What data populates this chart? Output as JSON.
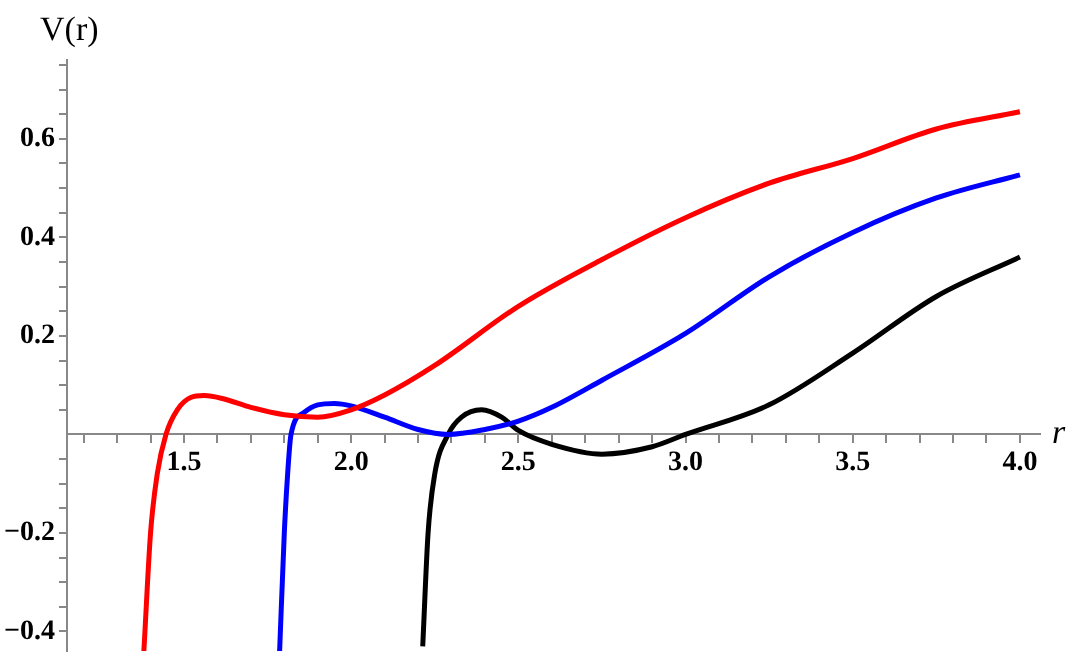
{
  "chart_data": {
    "type": "line",
    "xlabel": "r",
    "ylabel": "V(r)",
    "marker": "none",
    "legend": false,
    "xlim": [
      1.15,
      4.06
    ],
    "ylim": [
      -0.44,
      0.76
    ],
    "xticks": [
      {
        "value": 1.2,
        "label": null
      },
      {
        "value": 1.3,
        "label": null
      },
      {
        "value": 1.4,
        "label": null
      },
      {
        "value": 1.5,
        "label": "1.5"
      },
      {
        "value": 1.6,
        "label": null
      },
      {
        "value": 1.7,
        "label": null
      },
      {
        "value": 1.8,
        "label": null
      },
      {
        "value": 1.9,
        "label": null
      },
      {
        "value": 2,
        "label": "2.0"
      },
      {
        "value": 2.1,
        "label": null
      },
      {
        "value": 2.2,
        "label": null
      },
      {
        "value": 2.3,
        "label": null
      },
      {
        "value": 2.4,
        "label": null
      },
      {
        "value": 2.5,
        "label": "2.5"
      },
      {
        "value": 2.6,
        "label": null
      },
      {
        "value": 2.7,
        "label": null
      },
      {
        "value": 2.8,
        "label": null
      },
      {
        "value": 2.9,
        "label": null
      },
      {
        "value": 3,
        "label": "3.0"
      },
      {
        "value": 3.1,
        "label": null
      },
      {
        "value": 3.2,
        "label": null
      },
      {
        "value": 3.3,
        "label": null
      },
      {
        "value": 3.4,
        "label": null
      },
      {
        "value": 3.5,
        "label": "3.5"
      },
      {
        "value": 3.6,
        "label": null
      },
      {
        "value": 3.7,
        "label": null
      },
      {
        "value": 3.8,
        "label": null
      },
      {
        "value": 3.9,
        "label": null
      },
      {
        "value": 4,
        "label": "4.0"
      }
    ],
    "yticks": [
      {
        "value": -0.4,
        "label": "−0.4"
      },
      {
        "value": -0.35,
        "label": null
      },
      {
        "value": -0.3,
        "label": null
      },
      {
        "value": -0.25,
        "label": null
      },
      {
        "value": -0.2,
        "label": "−0.2"
      },
      {
        "value": -0.15,
        "label": null
      },
      {
        "value": -0.1,
        "label": null
      },
      {
        "value": -0.05,
        "label": null
      },
      {
        "value": 0.05,
        "label": null
      },
      {
        "value": 0.1,
        "label": null
      },
      {
        "value": 0.15,
        "label": null
      },
      {
        "value": 0.2,
        "label": "0.2"
      },
      {
        "value": 0.25,
        "label": null
      },
      {
        "value": 0.3,
        "label": null
      },
      {
        "value": 0.35,
        "label": null
      },
      {
        "value": 0.4,
        "label": "0.4"
      },
      {
        "value": 0.45,
        "label": null
      },
      {
        "value": 0.5,
        "label": null
      },
      {
        "value": 0.55,
        "label": null
      },
      {
        "value": 0.6,
        "label": "0.6"
      },
      {
        "value": 0.65,
        "label": null
      },
      {
        "value": 0.7,
        "label": null
      },
      {
        "value": 0.75,
        "label": null
      }
    ],
    "series": [
      {
        "color": "#ff0000",
        "x": [
          1.38,
          1.4,
          1.42,
          1.446,
          1.48,
          1.52,
          1.56,
          1.62,
          1.7,
          1.8,
          1.9,
          2.0,
          2.1,
          2.25,
          2.5,
          2.75,
          3.0,
          3.25,
          3.5,
          3.75,
          4.0
        ],
        "values": [
          -0.44,
          -0.2,
          -0.08,
          0,
          0.05,
          0.075,
          0.079,
          0.072,
          0.055,
          0.04,
          0.035,
          0.05,
          0.08,
          0.14,
          0.26,
          0.355,
          0.44,
          0.51,
          0.56,
          0.62,
          0.655
        ]
      },
      {
        "color": "#0000ff",
        "x": [
          1.786,
          1.8,
          1.81,
          1.82,
          1.86,
          1.9,
          1.95,
          2.0,
          2.1,
          2.2,
          2.29,
          2.4,
          2.5,
          2.6,
          2.75,
          3.0,
          3.25,
          3.5,
          3.75,
          4.0
        ],
        "values": [
          -0.44,
          -0.2,
          -0.08,
          0,
          0.045,
          0.06,
          0.063,
          0.058,
          0.035,
          0.01,
          0,
          0.01,
          0.027,
          0.055,
          0.11,
          0.205,
          0.32,
          0.41,
          0.48,
          0.527
        ]
      },
      {
        "color": "#000000",
        "x": [
          2.214,
          2.23,
          2.25,
          2.29,
          2.33,
          2.39,
          2.45,
          2.5,
          2.6,
          2.75,
          2.9,
          3.0,
          3.25,
          3.5,
          3.75,
          4.0
        ],
        "values": [
          -0.43,
          -0.2,
          -0.08,
          0,
          0.035,
          0.05,
          0.035,
          0.008,
          -0.02,
          -0.04,
          -0.025,
          0,
          0.06,
          0.165,
          0.28,
          0.36
        ]
      }
    ]
  }
}
